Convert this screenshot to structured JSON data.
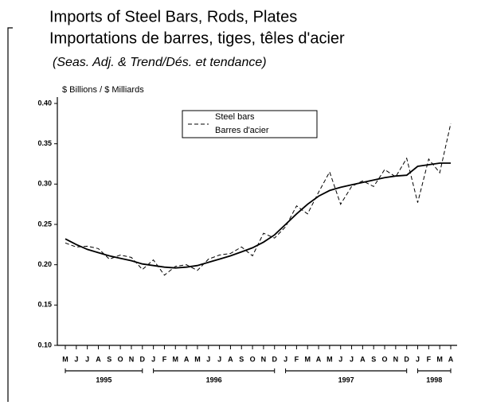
{
  "chart_data": {
    "type": "line",
    "title": "Imports of Steel Bars, Rods, Plates",
    "title_fr": "Importations de barres, tiges, têles d'acier",
    "subtitle": "(Seas. Adj. & Trend/Dés. et tendance)",
    "y_label": "$ Billions / $ Milliards",
    "categories": [
      "M",
      "J",
      "J",
      "A",
      "S",
      "O",
      "N",
      "D",
      "J",
      "F",
      "M",
      "A",
      "M",
      "J",
      "J",
      "A",
      "S",
      "O",
      "N",
      "D",
      "J",
      "F",
      "M",
      "A",
      "M",
      "J",
      "J",
      "A",
      "S",
      "O",
      "N",
      "D",
      "J",
      "F",
      "M",
      "A"
    ],
    "years": [
      "1995",
      "1996",
      "1997",
      "1998"
    ],
    "series": [
      {
        "name": "Steel bars",
        "name_fr": "Barres d'acier",
        "color": "#000000",
        "dash": true,
        "values": [
          0.227,
          0.222,
          0.223,
          0.22,
          0.207,
          0.212,
          0.209,
          0.194,
          0.206,
          0.187,
          0.198,
          0.2,
          0.193,
          0.207,
          0.212,
          0.214,
          0.222,
          0.211,
          0.239,
          0.233,
          0.247,
          0.273,
          0.263,
          0.29,
          0.315,
          0.275,
          0.297,
          0.304,
          0.297,
          0.318,
          0.309,
          0.332,
          0.277,
          0.331,
          0.314,
          0.375
        ]
      },
      {
        "color": "#000000",
        "dash": false,
        "values": [
          0.232,
          0.225,
          0.219,
          0.215,
          0.211,
          0.208,
          0.205,
          0.201,
          0.199,
          0.197,
          0.196,
          0.197,
          0.199,
          0.203,
          0.207,
          0.211,
          0.216,
          0.221,
          0.228,
          0.237,
          0.25,
          0.263,
          0.275,
          0.285,
          0.292,
          0.296,
          0.299,
          0.302,
          0.305,
          0.308,
          0.31,
          0.311,
          0.322,
          0.324,
          0.326,
          0.326
        ]
      }
    ],
    "ylim": [
      0.1,
      0.4
    ],
    "yticks": [
      {
        "value": 0.4,
        "label": "0.40"
      },
      0.35,
      {
        "value": 0.3,
        "label": "0.30"
      },
      0.25,
      {
        "value": 0.2,
        "label": "0.20"
      },
      0.15,
      {
        "value": 0.1,
        "label": "0.10"
      }
    ]
  }
}
